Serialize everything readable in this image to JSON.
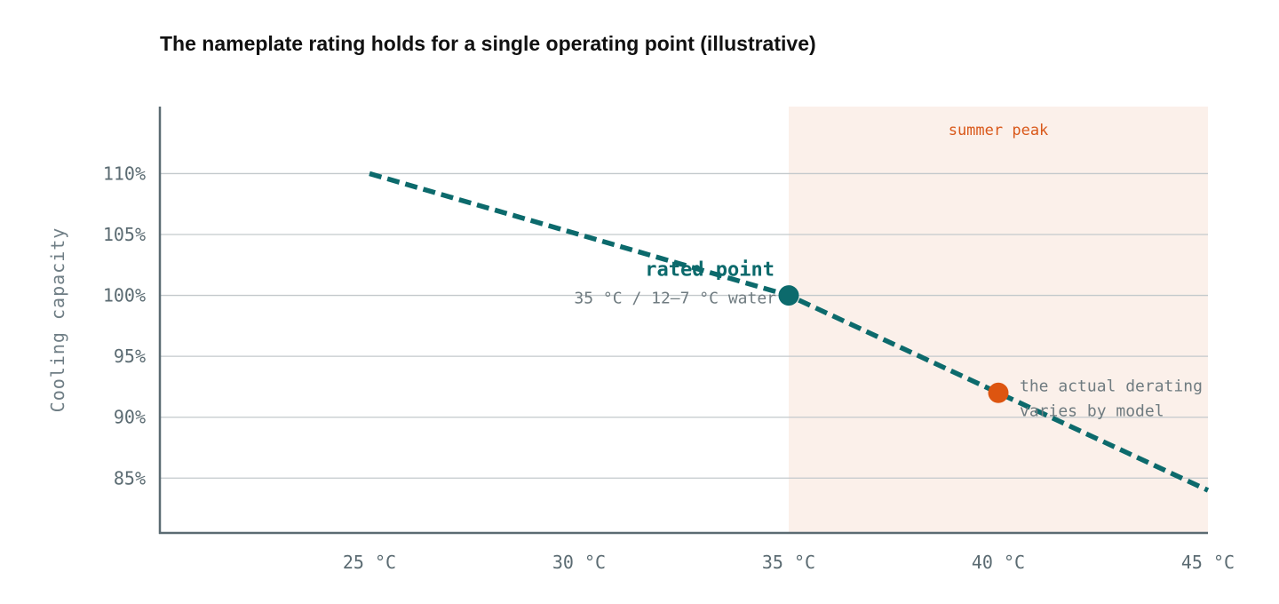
{
  "title": "The nameplate rating holds for a single operating point (illustrative)",
  "colors": {
    "line": "#0c6a6c",
    "rated_point": "#0c6a6c",
    "highlight_point": "#dd5510",
    "shade": "#fbf0ea",
    "peak_text": "#d9581a",
    "grid": "#c3c9cc",
    "axis": "#5b6b72"
  },
  "chart_data": {
    "type": "line",
    "title": "The nameplate rating holds for a single operating point (illustrative)",
    "xlabel": "",
    "ylabel": "Cooling capacity",
    "xlim": [
      20,
      45
    ],
    "ylim": [
      80.5,
      115.5
    ],
    "x_ticks": [
      25,
      30,
      35,
      40,
      45
    ],
    "x_tick_labels": [
      "25 °C",
      "30 °C",
      "35 °C",
      "40 °C",
      "45 °C"
    ],
    "y_ticks": [
      85,
      90,
      95,
      100,
      105,
      110
    ],
    "y_tick_labels": [
      "85%",
      "90%",
      "95%",
      "100%",
      "105%",
      "110%"
    ],
    "grid": "horizontal",
    "series": [
      {
        "style": "dashed",
        "x": [
          25,
          35,
          40,
          45
        ],
        "y": [
          110,
          100,
          92,
          84
        ]
      }
    ],
    "shaded_region": {
      "x": [
        35,
        45
      ],
      "label": "summer peak"
    },
    "points": [
      {
        "x": 35,
        "y": 100,
        "label": "rated point",
        "sublabel": "35 °C / 12–7 °C water"
      },
      {
        "x": 40,
        "y": 92,
        "label_lines": [
          "the actual derating",
          "varies by model"
        ]
      }
    ]
  }
}
